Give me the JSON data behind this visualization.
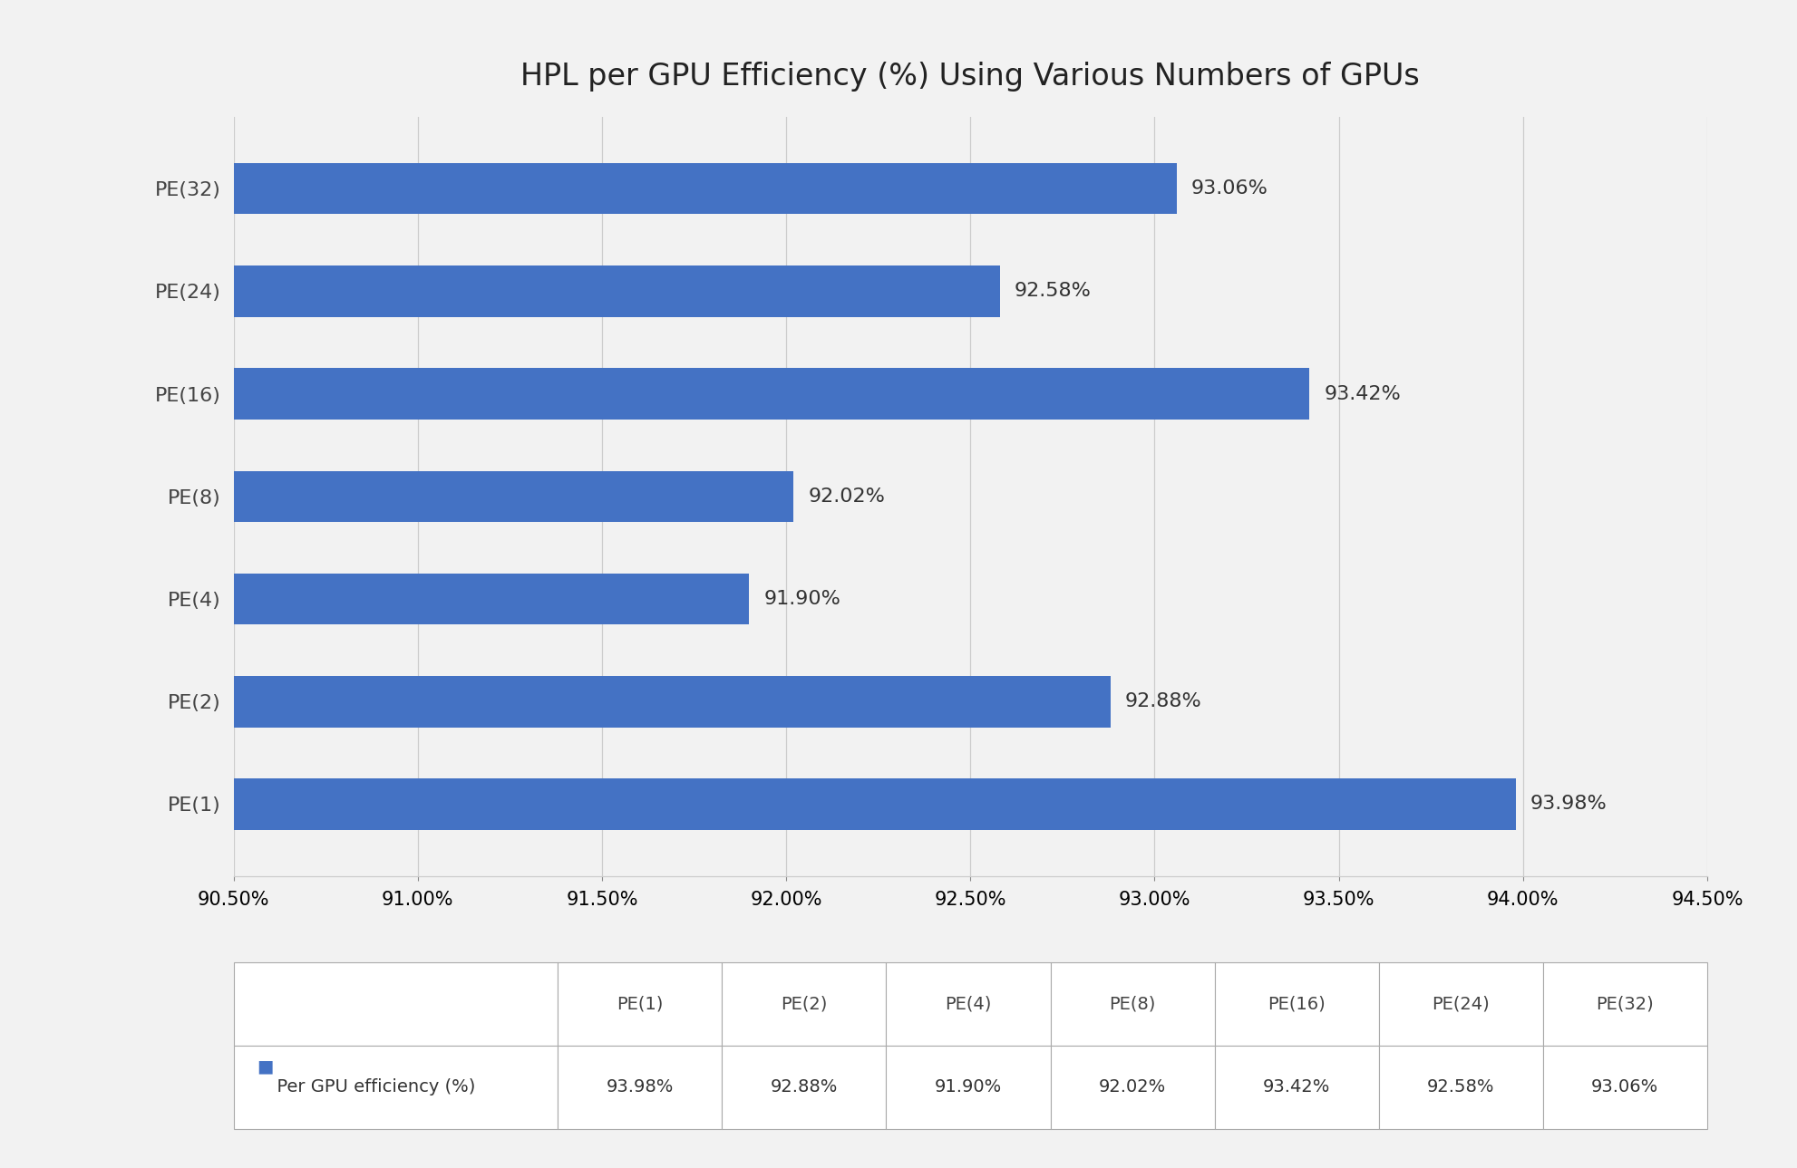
{
  "title": "HPL per GPU Efficiency (%) Using Various Numbers of GPUs",
  "categories": [
    "PE(1)",
    "PE(2)",
    "PE(4)",
    "PE(8)",
    "PE(16)",
    "PE(24)",
    "PE(32)"
  ],
  "values": [
    93.98,
    92.88,
    91.9,
    92.02,
    93.42,
    92.58,
    93.06
  ],
  "bar_color": "#4472C4",
  "xlim": [
    90.5,
    94.5
  ],
  "xticks": [
    90.5,
    91.0,
    91.5,
    92.0,
    92.5,
    93.0,
    93.5,
    94.0,
    94.5
  ],
  "background_color": "#f2f2f2",
  "grid_color": "#cccccc",
  "title_fontsize": 24,
  "label_fontsize": 16,
  "tick_fontsize": 15,
  "value_label_fontsize": 16,
  "bar_height": 0.5,
  "legend_label": "Per GPU efficiency (%)",
  "table_headers": [
    "PE(1)",
    "PE(2)",
    "PE(4)",
    "PE(8)",
    "PE(16)",
    "PE(24)",
    "PE(32)"
  ],
  "table_row_label": "Per GPU efficiency (%)",
  "table_values": [
    "93.98%",
    "92.88%",
    "91.90%",
    "92.02%",
    "93.42%",
    "92.58%",
    "93.06%"
  ]
}
